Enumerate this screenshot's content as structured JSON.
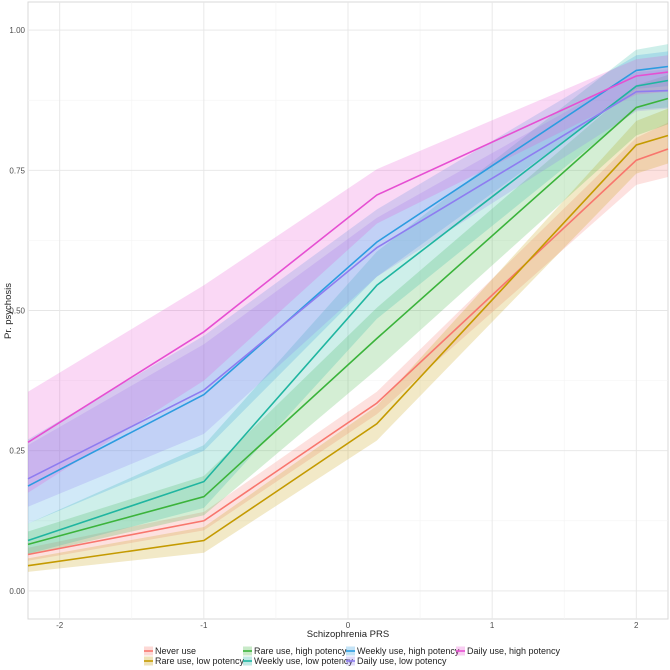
{
  "chart_data": {
    "type": "line",
    "xlabel": "Schizophrenia PRS",
    "ylabel": "Pr. psychosis",
    "xlim": [
      -2.22,
      2.22
    ],
    "ylim": [
      -0.05,
      1.05
    ],
    "x_ticks": [
      -2,
      -1,
      0,
      1,
      2
    ],
    "x_tick_labels": [
      "-2",
      "-1",
      "0",
      "1",
      "2"
    ],
    "y_ticks": [
      0,
      0.25,
      0.5,
      0.75,
      1
    ],
    "y_tick_labels": [
      "0.00",
      "0.25",
      "0.50",
      "0.75",
      "1.00"
    ],
    "grid": true,
    "legend_position": "bottom",
    "x": [
      -2.22,
      -1.0,
      0.2,
      2.0,
      2.22
    ],
    "series": [
      {
        "name": "Never use",
        "color": "#F8766D",
        "values": [
          0.065,
          0.125,
          0.335,
          0.768,
          0.788
        ],
        "lower": [
          0.054,
          0.108,
          0.315,
          0.724,
          0.738
        ],
        "upper": [
          0.077,
          0.141,
          0.355,
          0.808,
          0.835
        ]
      },
      {
        "name": "Rare use, low potency",
        "color": "#C49A00",
        "values": [
          0.045,
          0.09,
          0.298,
          0.795,
          0.812
        ],
        "lower": [
          0.034,
          0.068,
          0.268,
          0.744,
          0.762
        ],
        "upper": [
          0.058,
          0.114,
          0.33,
          0.838,
          0.86
        ]
      },
      {
        "name": "Rare use, high potency",
        "color": "#3BB33B",
        "values": [
          0.083,
          0.168,
          0.45,
          0.862,
          0.878
        ],
        "lower": [
          0.064,
          0.135,
          0.395,
          0.812,
          0.832
        ],
        "upper": [
          0.106,
          0.205,
          0.505,
          0.902,
          0.92
        ]
      },
      {
        "name": "Weekly use, low potency",
        "color": "#1FB5A0",
        "values": [
          0.09,
          0.195,
          0.545,
          0.9,
          0.91
        ],
        "lower": [
          0.066,
          0.148,
          0.485,
          0.858,
          0.862
        ],
        "upper": [
          0.12,
          0.26,
          0.605,
          0.965,
          0.975
        ]
      },
      {
        "name": "Weekly use, high potency",
        "color": "#2C9CE0",
        "values": [
          0.187,
          0.35,
          0.622,
          0.928,
          0.935
        ],
        "lower": [
          0.12,
          0.25,
          0.56,
          0.895,
          0.9
        ],
        "upper": [
          0.27,
          0.455,
          0.68,
          0.955,
          0.962
        ]
      },
      {
        "name": "Daily use, low potency",
        "color": "#8E7CF0",
        "values": [
          0.2,
          0.358,
          0.612,
          0.89,
          0.892
        ],
        "lower": [
          0.15,
          0.28,
          0.56,
          0.855,
          0.86
        ],
        "upper": [
          0.26,
          0.44,
          0.665,
          0.925,
          0.93
        ]
      },
      {
        "name": "Daily use, high potency",
        "color": "#E64FD2",
        "values": [
          0.265,
          0.462,
          0.706,
          0.918,
          0.925
        ],
        "lower": [
          0.175,
          0.375,
          0.655,
          0.885,
          0.89
        ],
        "upper": [
          0.355,
          0.545,
          0.752,
          0.948,
          0.955
        ]
      }
    ]
  }
}
